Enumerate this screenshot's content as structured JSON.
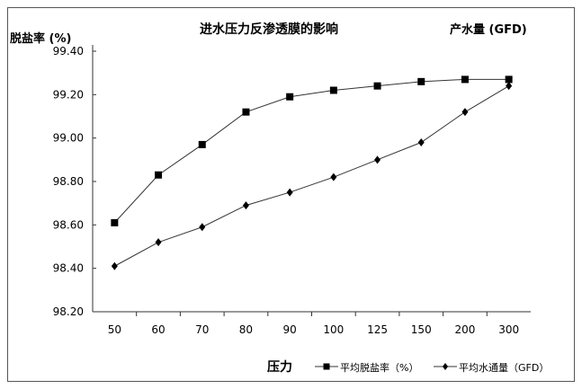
{
  "chart_data": {
    "type": "line",
    "title": "进水压力反渗透膜的影响",
    "ylabel": "脱盐率 (%)",
    "y2label": "产水量 (GFD)",
    "xlabel": "压力",
    "categories": [
      "50",
      "60",
      "70",
      "80",
      "90",
      "100",
      "125",
      "150",
      "200",
      "300"
    ],
    "ylim": [
      98.2,
      99.4
    ],
    "yticks": [
      "99.40",
      "99.20",
      "99.00",
      "98.80",
      "98.60",
      "98.40",
      "98.20"
    ],
    "ytick_values": [
      99.4,
      99.2,
      99.0,
      98.8,
      98.6,
      98.4,
      98.2
    ],
    "series": [
      {
        "name": "平均脱盐率（%）",
        "marker": "square",
        "values": [
          98.61,
          98.83,
          98.97,
          99.12,
          99.19,
          99.22,
          99.24,
          99.26,
          99.27,
          99.27
        ]
      },
      {
        "name": "平均水通量（GFD）",
        "marker": "diamond",
        "values": [
          98.41,
          98.52,
          98.59,
          98.69,
          98.75,
          98.82,
          98.9,
          98.98,
          99.12,
          99.24
        ]
      }
    ],
    "legend": "bottom-right",
    "grid": false
  }
}
